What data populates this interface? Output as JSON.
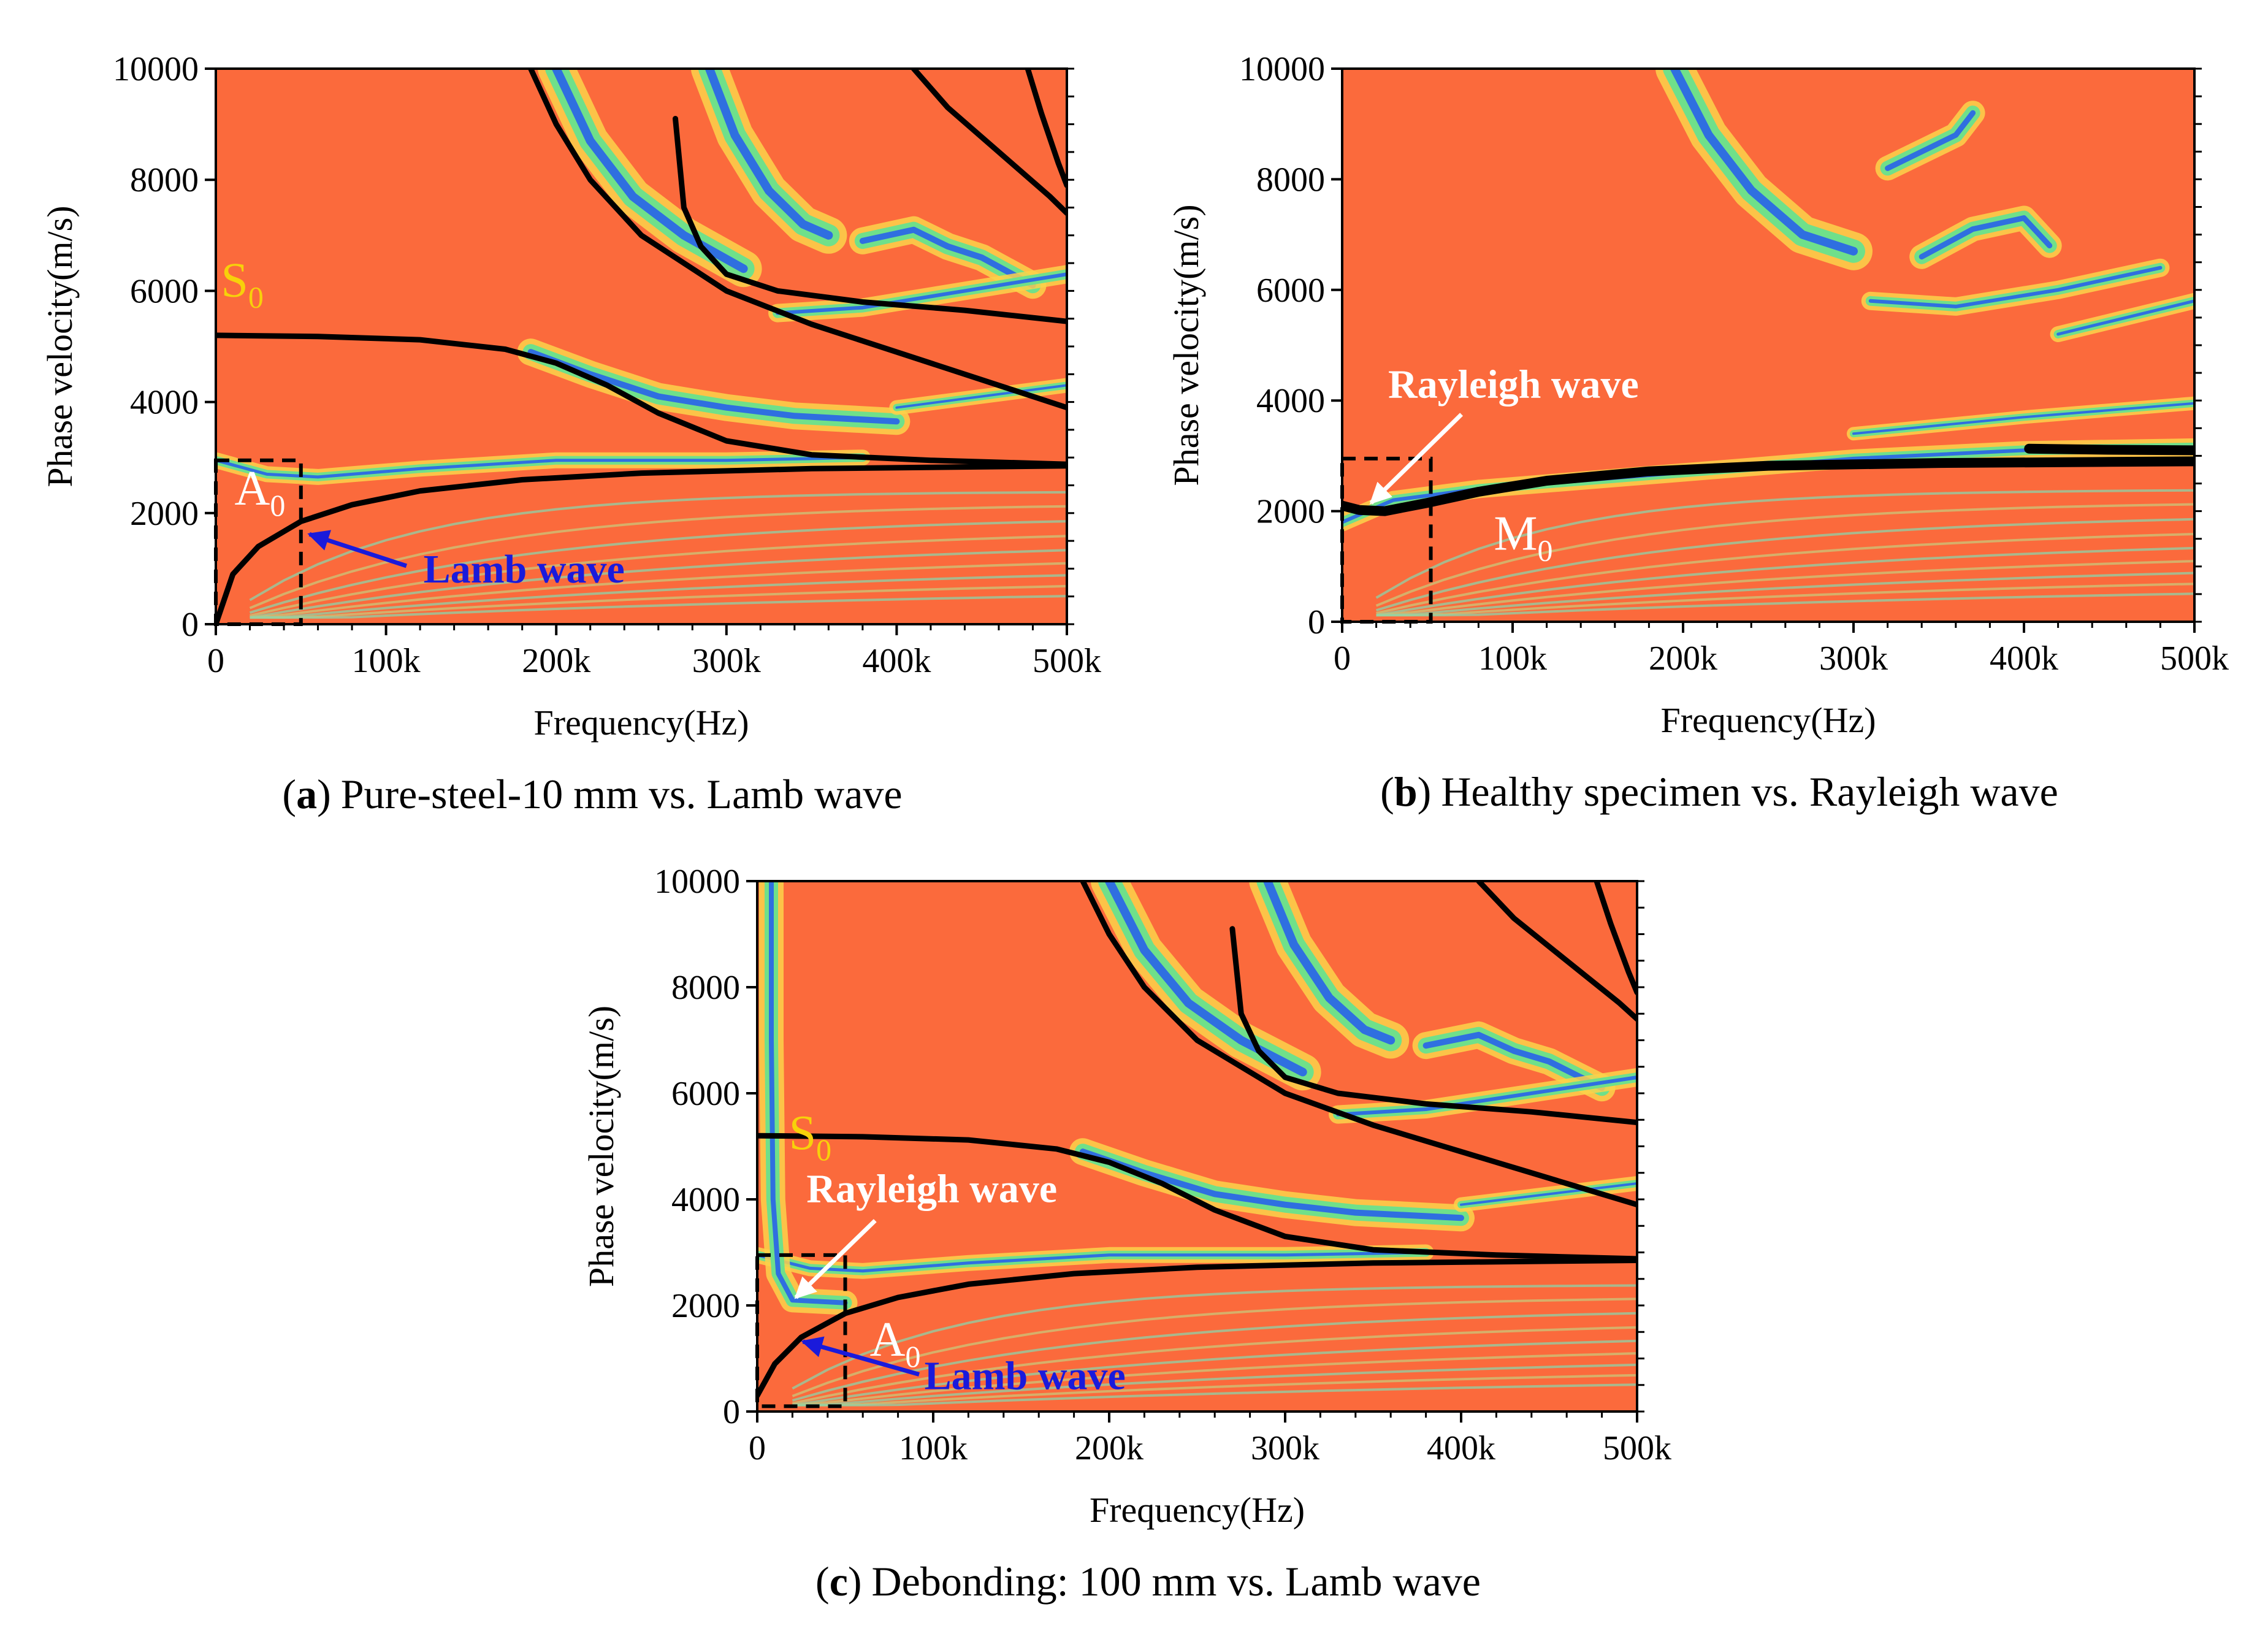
{
  "colors": {
    "background_field": "#fb6a3c",
    "mode_curve": "#000000",
    "lamb_label": "#1a1adb",
    "white_label": "#ffffff",
    "s0_label": "#f7d10a",
    "band_outer": "#fbd24a",
    "band_mid": "#6fe08a",
    "band_core": "#2f6fe0"
  },
  "chart_data": [
    {
      "id": "a",
      "type": "heatmap",
      "title": "Pure-steel-10 mm vs. Lamb wave",
      "caption_letter": "a",
      "caption_open": "(",
      "caption_close": ")",
      "xlabel": "Frequency(Hz)",
      "ylabel": "Phase velocity(m/s)",
      "xlim": [
        0,
        500000
      ],
      "ylim": [
        0,
        10000
      ],
      "x_ticks": [
        {
          "v": 0,
          "label": "0"
        },
        {
          "v": 100000,
          "label": "100k"
        },
        {
          "v": 200000,
          "label": "200k"
        },
        {
          "v": 300000,
          "label": "300k"
        },
        {
          "v": 400000,
          "label": "400k"
        },
        {
          "v": 500000,
          "label": "500k"
        }
      ],
      "y_ticks": [
        {
          "v": 0,
          "label": "0"
        },
        {
          "v": 2000,
          "label": "2000"
        },
        {
          "v": 4000,
          "label": "4000"
        },
        {
          "v": 6000,
          "label": "6000"
        },
        {
          "v": 8000,
          "label": "8000"
        },
        {
          "v": 10000,
          "label": "10000"
        }
      ],
      "series": [
        {
          "name": "A0",
          "x": [
            0,
            10000,
            25000,
            50000,
            80000,
            120000,
            180000,
            250000,
            350000,
            500000
          ],
          "y": [
            0,
            900,
            1400,
            1850,
            2150,
            2400,
            2600,
            2720,
            2800,
            2850
          ]
        },
        {
          "name": "S0",
          "x": [
            0,
            60000,
            120000,
            170000,
            200000,
            230000,
            260000,
            300000,
            350000,
            420000,
            500000
          ],
          "y": [
            5200,
            5180,
            5120,
            4950,
            4700,
            4300,
            3800,
            3300,
            3050,
            2950,
            2880
          ]
        },
        {
          "name": "mode-3",
          "x": [
            185000,
            200000,
            220000,
            250000,
            300000,
            350000,
            420000,
            500000
          ],
          "y": [
            10000,
            9000,
            8000,
            7000,
            6000,
            5400,
            4700,
            3900
          ]
        },
        {
          "name": "mode-4",
          "x": [
            270000,
            275000,
            285000,
            300000,
            330000,
            380000,
            440000,
            500000
          ],
          "y": [
            9100,
            7500,
            6800,
            6300,
            6000,
            5800,
            5650,
            5450
          ]
        },
        {
          "name": "mode-5",
          "x": [
            410000,
            430000,
            460000,
            490000,
            500000
          ],
          "y": [
            10000,
            9300,
            8500,
            7700,
            7400
          ]
        },
        {
          "name": "mode-6",
          "x": [
            477000,
            485000,
            495000,
            500000
          ],
          "y": [
            10000,
            9200,
            8300,
            7900
          ]
        }
      ],
      "dashed_box": {
        "x0": 0,
        "x1": 50000,
        "y0": 0,
        "y1": 2950
      },
      "annotations": [
        {
          "text": "S",
          "sub": "0",
          "style": "s0",
          "at": [
            3000,
            5900
          ]
        },
        {
          "text": "A",
          "sub": "0",
          "style": "white",
          "at": [
            11000,
            2150
          ]
        },
        {
          "text": "Lamb wave",
          "style": "lamb",
          "at": [
            122000,
            750
          ],
          "arrow_from": [
            112000,
            1050
          ],
          "arrow_to": [
            55000,
            1620
          ]
        }
      ]
    },
    {
      "id": "b",
      "type": "heatmap",
      "title": "Healthy specimen vs. Rayleigh wave",
      "caption_letter": "b",
      "caption_open": "(",
      "caption_close": ")",
      "xlabel": "Frequency(Hz)",
      "ylabel": "Phase velocity(m/s)",
      "xlim": [
        0,
        500000
      ],
      "ylim": [
        0,
        10000
      ],
      "x_ticks": [
        {
          "v": 0,
          "label": "0"
        },
        {
          "v": 100000,
          "label": "100k"
        },
        {
          "v": 200000,
          "label": "200k"
        },
        {
          "v": 300000,
          "label": "300k"
        },
        {
          "v": 400000,
          "label": "400k"
        },
        {
          "v": 500000,
          "label": "500k"
        }
      ],
      "y_ticks": [
        {
          "v": 0,
          "label": "0"
        },
        {
          "v": 2000,
          "label": "2000"
        },
        {
          "v": 4000,
          "label": "4000"
        },
        {
          "v": 6000,
          "label": "6000"
        },
        {
          "v": 8000,
          "label": "8000"
        },
        {
          "v": 10000,
          "label": "10000"
        }
      ],
      "series": [
        {
          "name": "M0",
          "x": [
            0,
            10000,
            25000,
            50000,
            80000,
            120000,
            180000,
            250000,
            350000,
            450000,
            500000
          ],
          "y": [
            2100,
            2020,
            2000,
            2150,
            2350,
            2550,
            2720,
            2820,
            2870,
            2890,
            2900
          ]
        },
        {
          "name": "M0-upper",
          "x": [
            403000,
            450000,
            500000
          ],
          "y": [
            3130,
            3110,
            3100
          ]
        }
      ],
      "dashed_box": {
        "x0": 0,
        "x1": 52000,
        "y0": 0,
        "y1": 2950
      },
      "annotations": [
        {
          "text": "Rayleigh wave",
          "style": "white-bold",
          "at": [
            27000,
            4050
          ],
          "arrow_from": [
            70000,
            3750
          ],
          "arrow_to": [
            17000,
            2150
          ]
        },
        {
          "text": "M",
          "sub": "0",
          "style": "white",
          "at": [
            89000,
            1300
          ]
        }
      ]
    },
    {
      "id": "c",
      "type": "heatmap",
      "title": "Debonding: 100 mm vs. Lamb wave",
      "caption_letter": "c",
      "caption_open": "(",
      "caption_close": ")",
      "xlabel": "Frequency(Hz)",
      "ylabel": "Phase velocity(m/s)",
      "xlim": [
        0,
        500000
      ],
      "ylim": [
        0,
        10000
      ],
      "x_ticks": [
        {
          "v": 0,
          "label": "0"
        },
        {
          "v": 100000,
          "label": "100k"
        },
        {
          "v": 200000,
          "label": "200k"
        },
        {
          "v": 300000,
          "label": "300k"
        },
        {
          "v": 400000,
          "label": "400k"
        },
        {
          "v": 500000,
          "label": "500k"
        }
      ],
      "y_ticks": [
        {
          "v": 0,
          "label": "0"
        },
        {
          "v": 2000,
          "label": "2000"
        },
        {
          "v": 4000,
          "label": "4000"
        },
        {
          "v": 6000,
          "label": "6000"
        },
        {
          "v": 8000,
          "label": "8000"
        },
        {
          "v": 10000,
          "label": "10000"
        }
      ],
      "series": [
        {
          "name": "A0",
          "x": [
            0,
            10000,
            25000,
            50000,
            80000,
            120000,
            180000,
            250000,
            350000,
            500000
          ],
          "y": [
            300,
            900,
            1400,
            1850,
            2150,
            2400,
            2600,
            2720,
            2800,
            2850
          ]
        },
        {
          "name": "S0",
          "x": [
            0,
            60000,
            120000,
            170000,
            200000,
            230000,
            260000,
            300000,
            350000,
            420000,
            500000
          ],
          "y": [
            5200,
            5180,
            5120,
            4950,
            4700,
            4300,
            3800,
            3300,
            3050,
            2950,
            2880
          ]
        },
        {
          "name": "mode-3",
          "x": [
            185000,
            200000,
            220000,
            250000,
            300000,
            350000,
            420000,
            500000
          ],
          "y": [
            10000,
            9000,
            8000,
            7000,
            6000,
            5400,
            4700,
            3900
          ]
        },
        {
          "name": "mode-4",
          "x": [
            270000,
            275000,
            285000,
            300000,
            330000,
            380000,
            440000,
            500000
          ],
          "y": [
            9100,
            7500,
            6800,
            6300,
            6000,
            5800,
            5650,
            5450
          ]
        },
        {
          "name": "mode-5",
          "x": [
            410000,
            430000,
            460000,
            490000,
            500000
          ],
          "y": [
            10000,
            9300,
            8500,
            7700,
            7400
          ]
        },
        {
          "name": "mode-6",
          "x": [
            477000,
            485000,
            495000,
            500000
          ],
          "y": [
            10000,
            9200,
            8300,
            7900
          ]
        }
      ],
      "dashed_box": {
        "x0": 0,
        "x1": 50000,
        "y0": 100,
        "y1": 2950
      },
      "annotations": [
        {
          "text": "S",
          "sub": "0",
          "style": "s0",
          "at": [
            18000,
            4950
          ]
        },
        {
          "text": "Rayleigh wave",
          "style": "white-bold",
          "at": [
            28000,
            3950
          ],
          "arrow_from": [
            67000,
            3600
          ],
          "arrow_to": [
            22000,
            2150
          ]
        },
        {
          "text": "A",
          "sub": "0",
          "style": "white",
          "at": [
            64000,
            1050
          ]
        },
        {
          "text": "Lamb wave",
          "style": "lamb",
          "at": [
            95000,
            420
          ],
          "arrow_from": [
            92000,
            700
          ],
          "arrow_to": [
            26000,
            1320
          ]
        }
      ]
    }
  ]
}
